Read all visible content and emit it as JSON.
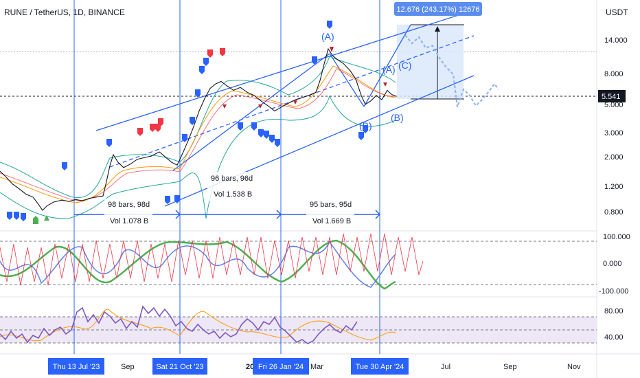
{
  "chart_data": {
    "type": "line",
    "title": "RUNE / TetherUS, 1D, BINANCE",
    "currency": "USDT",
    "current_price": "5.541",
    "price_axis": {
      "scale": "log",
      "ticks": [
        "14.000",
        "8.000",
        "5.000",
        "3.000",
        "2.000",
        "1.200",
        "0.800"
      ]
    },
    "osc_axis": {
      "ticks": [
        "100.000",
        "0.000",
        "-100.000"
      ]
    },
    "rsi_axis": {
      "ticks": [
        "80.00",
        "40.00"
      ]
    },
    "time_axis": {
      "ticks": [
        "Sep",
        "20",
        "Mar",
        "Jul",
        "Sep",
        "Nov"
      ]
    },
    "highlighted_dates": [
      "Thu 13 Jul '23",
      "Sat 21 Oct '23",
      "Fri 26 Jan '24",
      "Tue 30 Apr '24"
    ],
    "price_series": [
      {
        "t": 0,
        "v": 1.55
      },
      {
        "t": 8,
        "v": 1.42
      },
      {
        "t": 18,
        "v": 1.25
      },
      {
        "t": 28,
        "v": 1.15
      },
      {
        "t": 38,
        "v": 1.05
      },
      {
        "t": 48,
        "v": 1.0
      },
      {
        "t": 55,
        "v": 0.9
      },
      {
        "t": 62,
        "v": 0.8
      },
      {
        "t": 68,
        "v": 0.86
      },
      {
        "t": 78,
        "v": 0.92
      },
      {
        "t": 90,
        "v": 0.95
      },
      {
        "t": 100,
        "v": 0.93
      },
      {
        "t": 110,
        "v": 0.96
      },
      {
        "t": 120,
        "v": 0.94
      },
      {
        "t": 130,
        "v": 0.98
      },
      {
        "t": 140,
        "v": 1.0
      },
      {
        "t": 150,
        "v": 1.02
      },
      {
        "t": 155,
        "v": 1.3
      },
      {
        "t": 160,
        "v": 1.7
      },
      {
        "t": 165,
        "v": 2.05
      },
      {
        "t": 172,
        "v": 1.8
      },
      {
        "t": 180,
        "v": 1.65
      },
      {
        "t": 190,
        "v": 1.75
      },
      {
        "t": 200,
        "v": 1.9
      },
      {
        "t": 210,
        "v": 1.95
      },
      {
        "t": 220,
        "v": 2.0
      },
      {
        "t": 232,
        "v": 2.15
      },
      {
        "t": 242,
        "v": 1.95
      },
      {
        "t": 250,
        "v": 1.8
      },
      {
        "t": 258,
        "v": 1.72
      },
      {
        "t": 266,
        "v": 2.1
      },
      {
        "t": 274,
        "v": 2.6
      },
      {
        "t": 282,
        "v": 3.3
      },
      {
        "t": 290,
        "v": 4.3
      },
      {
        "t": 298,
        "v": 5.3
      },
      {
        "t": 306,
        "v": 6.3
      },
      {
        "t": 314,
        "v": 6.8
      },
      {
        "t": 322,
        "v": 7.1
      },
      {
        "t": 330,
        "v": 6.6
      },
      {
        "t": 340,
        "v": 6.1
      },
      {
        "t": 350,
        "v": 6.4
      },
      {
        "t": 360,
        "v": 5.9
      },
      {
        "t": 370,
        "v": 5.6
      },
      {
        "t": 380,
        "v": 5.1
      },
      {
        "t": 390,
        "v": 4.7
      },
      {
        "t": 400,
        "v": 4.3
      },
      {
        "t": 410,
        "v": 4.6
      },
      {
        "t": 420,
        "v": 4.9
      },
      {
        "t": 430,
        "v": 5.2
      },
      {
        "t": 440,
        "v": 5.4
      },
      {
        "t": 450,
        "v": 5.6
      },
      {
        "t": 460,
        "v": 5.9
      },
      {
        "t": 466,
        "v": 7.2
      },
      {
        "t": 472,
        "v": 9.5
      },
      {
        "t": 478,
        "v": 12.3
      },
      {
        "t": 484,
        "v": 11.0
      },
      {
        "t": 492,
        "v": 10.2
      },
      {
        "t": 500,
        "v": 9.6
      },
      {
        "t": 510,
        "v": 8.5
      },
      {
        "t": 518,
        "v": 7.4
      },
      {
        "t": 526,
        "v": 5.6
      },
      {
        "t": 532,
        "v": 4.8
      },
      {
        "t": 540,
        "v": 5.1
      },
      {
        "t": 548,
        "v": 5.6
      },
      {
        "t": 556,
        "v": 5.2
      },
      {
        "t": 564,
        "v": 6.1
      },
      {
        "t": 570,
        "v": 5.7
      },
      {
        "t": 576,
        "v": 5.541
      }
    ],
    "projection_series": [
      {
        "t": 590,
        "v": 15.5
      },
      {
        "t": 600,
        "v": 13.5
      },
      {
        "t": 610,
        "v": 15.0
      },
      {
        "t": 620,
        "v": 12.5
      },
      {
        "t": 630,
        "v": 13.0
      },
      {
        "t": 640,
        "v": 10.5
      },
      {
        "t": 650,
        "v": 9.0
      },
      {
        "t": 660,
        "v": 8.0
      },
      {
        "t": 666,
        "v": 4.6
      },
      {
        "t": 675,
        "v": 6.2
      },
      {
        "t": 684,
        "v": 5.6
      },
      {
        "t": 693,
        "v": 4.7
      },
      {
        "t": 702,
        "v": 5.2
      },
      {
        "t": 711,
        "v": 5.9
      },
      {
        "t": 720,
        "v": 6.8
      },
      {
        "t": 726,
        "v": 6.2
      }
    ],
    "annotations": {
      "measure": "12.676 (243.17%) 12676",
      "range1_bars": "98 bars, 98d",
      "range1_vol": "Vol 1.078 B",
      "range2_bars": "96 bars, 96d",
      "range2_vol": "Vol 1.538 B",
      "range3_bars": "95 bars, 95d",
      "range3_vol": "Vol 1.669 B",
      "wave_A1": "(A)",
      "wave_A2": "(A)",
      "wave_B1": "(B)",
      "wave_B2": "(B)",
      "wave_C": "(C)"
    },
    "colors": {
      "price": "#131722",
      "channel": "#2962ff",
      "band": "#26a69a",
      "ma_orange": "#ff9800",
      "red": "#f23645",
      "green": "#4caf50",
      "purple": "#7e57c2",
      "projection": "#90b4f5"
    }
  }
}
